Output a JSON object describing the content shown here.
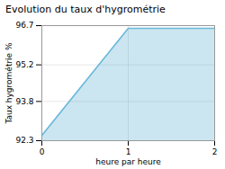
{
  "chart_data": {
    "type": "area",
    "title": "Evolution du taux d'hygrométrie",
    "xlabel": "heure par heure",
    "ylabel": "Taux hygrométrie %",
    "x": [
      0,
      1,
      2
    ],
    "values": [
      92.5,
      96.6,
      96.6
    ],
    "color": "#6ab8d8",
    "xlim": [
      0,
      2
    ],
    "xticks": [
      0,
      1,
      2
    ],
    "ylim": [
      92.3,
      96.7
    ],
    "yticks": [
      92.3,
      93.8,
      95.2,
      96.7
    ],
    "grid": true
  }
}
